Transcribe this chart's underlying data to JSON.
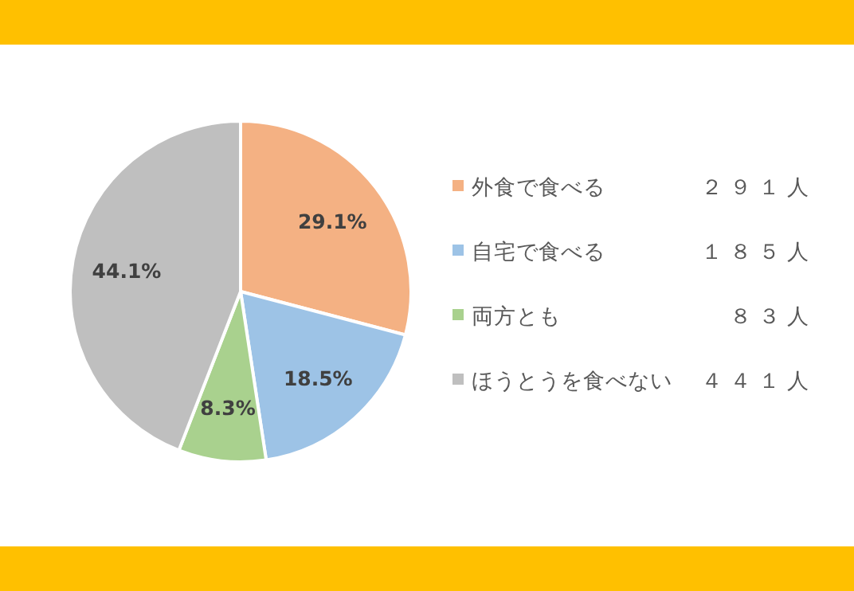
{
  "chart_data": {
    "type": "pie",
    "categories": [
      "外食で食べる",
      "自宅で食べる",
      "両方とも",
      "ほうとうを食べない"
    ],
    "values": [
      29.1,
      18.5,
      8.3,
      44.1
    ],
    "colors": [
      "#f4b183",
      "#9dc3e6",
      "#a9d18e",
      "#bfbfbf"
    ],
    "value_labels": [
      "29.1%",
      "18.5%",
      "8.3%",
      "44.1%"
    ],
    "legend": "right",
    "annotations": [
      "２９１人",
      "１８５人",
      "８３人",
      "４４１人"
    ]
  }
}
